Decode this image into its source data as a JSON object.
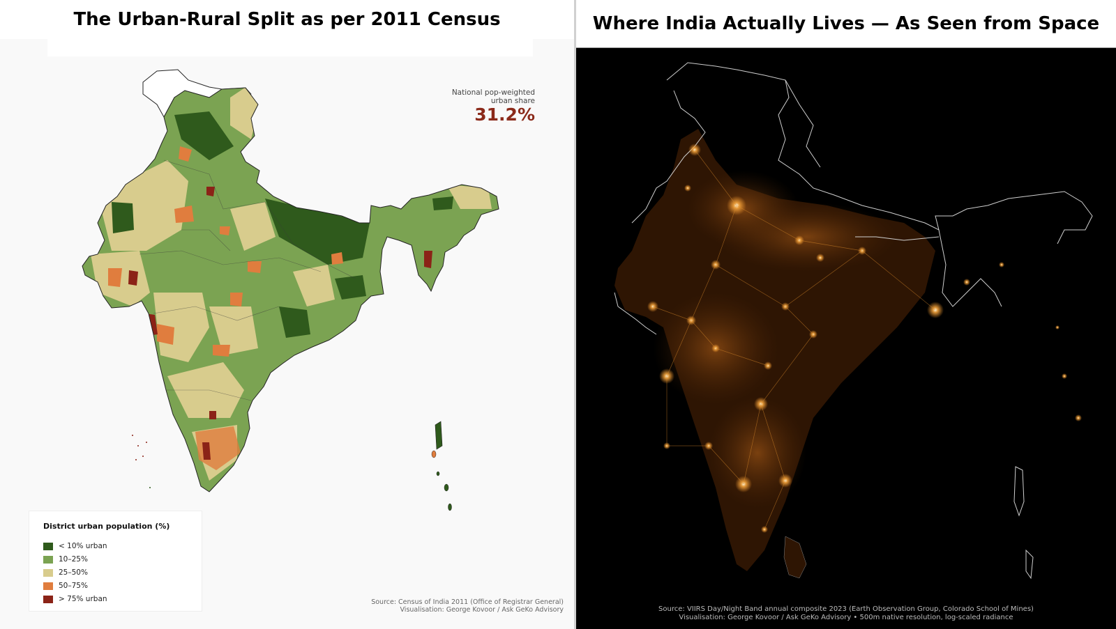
{
  "left_panel": {
    "title": "The Urban-Rural Split as per 2011 Census",
    "share_label_line1": "National pop-weighted",
    "share_label_line2": "urban share",
    "share_value": "31.2%",
    "legend": {
      "title": "District urban population (%)",
      "items": [
        {
          "label": "< 10% urban",
          "color": "#2f5a1c"
        },
        {
          "label": "10–25%",
          "color": "#7ba352"
        },
        {
          "label": "25–50%",
          "color": "#d8cc8d"
        },
        {
          "label": "50–75%",
          "color": "#e07d3e"
        },
        {
          "label": "> 75% urban",
          "color": "#8b2317"
        }
      ]
    },
    "source_line1": "Source: Census of India 2011 (Office of Registrar General)",
    "source_line2": "Visualisation: George Kovoor / Ask GeKo Advisory"
  },
  "right_panel": {
    "title": "Where India Actually Lives — As Seen from Space",
    "source_line1": "Source: VIIRS Day/Night Band annual composite 2023 (Earth Observation Group, Colorado School of Mines)",
    "source_line2": "Visualisation: George Kovoor / Ask GeKo Advisory  •  500m native resolution, log-scaled radiance",
    "light_color": "#e8902a"
  }
}
